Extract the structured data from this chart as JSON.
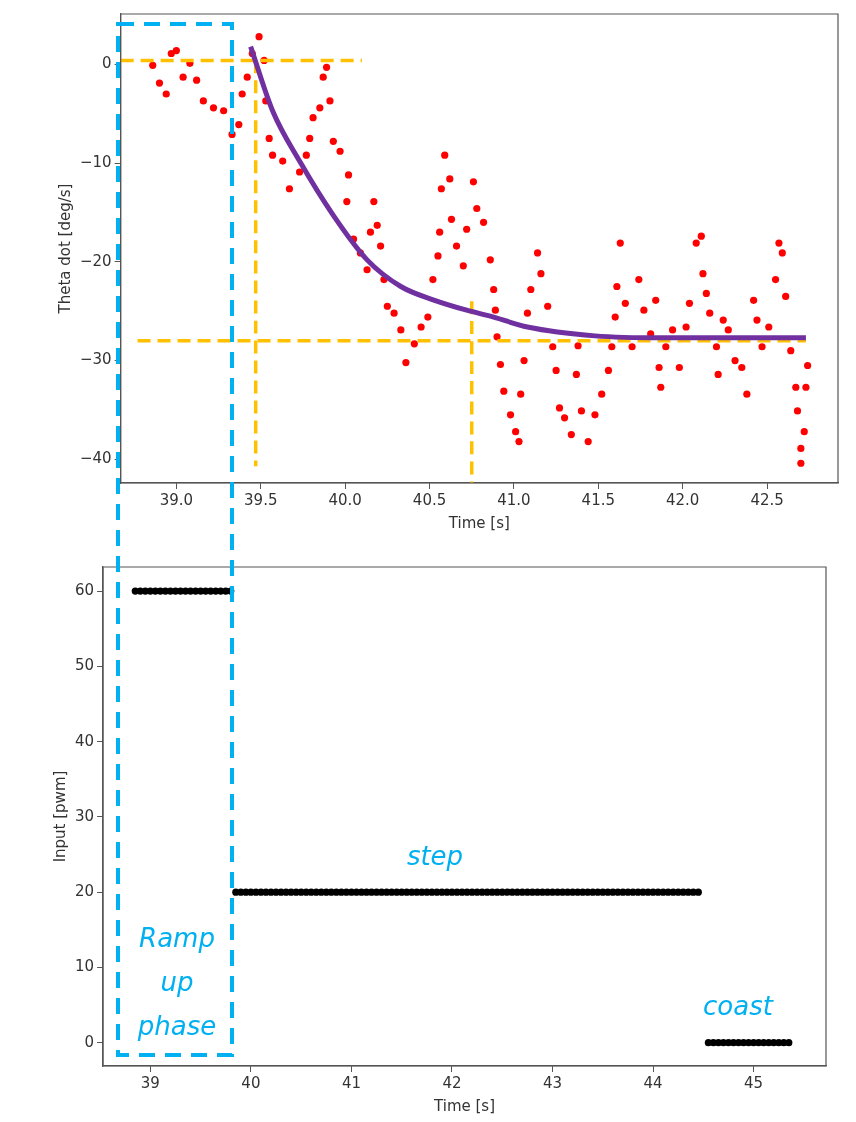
{
  "chart_data": [
    {
      "type": "scatter",
      "xlabel": "Time [s]",
      "ylabel": "Theta dot [deg/s]",
      "xlim": [
        38.67,
        42.92
      ],
      "ylim": [
        -42.4,
        5.1
      ],
      "xticks": [
        {
          "value": 39,
          "label": "39.0"
        },
        39.5,
        {
          "value": 40,
          "label": "40.0"
        },
        40.5,
        {
          "value": 41,
          "label": "41.0"
        },
        41.5,
        {
          "value": 42,
          "label": "42.0"
        },
        42.5
      ],
      "yticks": [
        {
          "value": -40,
          "label": "−40"
        },
        {
          "value": -30,
          "label": "−30"
        },
        {
          "value": -20,
          "label": "−20"
        },
        {
          "value": -10,
          "label": "−10"
        },
        0
      ],
      "grid": false,
      "legend": false,
      "series": [
        {
          "color": "#ff0000",
          "marker": "circle",
          "x": [
            38.86,
            38.9,
            38.94,
            38.97,
            39.0,
            39.04,
            39.08,
            39.12,
            39.16,
            39.22,
            39.28,
            39.33,
            39.37,
            39.39,
            39.42,
            39.45,
            39.49,
            39.52,
            39.53,
            39.55,
            39.57,
            39.63,
            39.67,
            39.73,
            39.77,
            39.79,
            39.81,
            39.85,
            39.87,
            39.89,
            39.91,
            39.93,
            39.97,
            40.01,
            40.02,
            40.05,
            40.09,
            40.13,
            40.15,
            40.17,
            40.19,
            40.21,
            40.23,
            40.25,
            40.29,
            40.33,
            40.36,
            40.41,
            40.45,
            40.49,
            40.52,
            40.55,
            40.56,
            40.57,
            40.59,
            40.62,
            40.63,
            40.66,
            40.7,
            40.72,
            40.76,
            40.78,
            40.82,
            40.86,
            40.88,
            40.89,
            40.9,
            40.92,
            40.94,
            40.98,
            41.01,
            41.03,
            41.04,
            41.06,
            41.08,
            41.1,
            41.14,
            41.16,
            41.2,
            41.23,
            41.25,
            41.27,
            41.3,
            41.34,
            41.37,
            41.38,
            41.4,
            41.44,
            41.48,
            41.52,
            41.56,
            41.58,
            41.6,
            41.61,
            41.63,
            41.66,
            41.7,
            41.74,
            41.77,
            41.81,
            41.84,
            41.86,
            41.87,
            41.9,
            41.94,
            41.98,
            42.02,
            42.04,
            42.08,
            42.11,
            42.12,
            42.14,
            42.16,
            42.2,
            42.21,
            42.24,
            42.27,
            42.31,
            42.35,
            42.38,
            42.42,
            42.44,
            42.47,
            42.51,
            42.55,
            42.57,
            42.59,
            42.61,
            42.64,
            42.67,
            42.68,
            42.7,
            42.7,
            42.72,
            42.73,
            42.74
          ],
          "values": [
            -0.1,
            -1.9,
            -3.0,
            1.1,
            1.4,
            -1.3,
            0.1,
            -1.6,
            -3.7,
            -4.4,
            -4.7,
            -7.1,
            -6.1,
            -3.0,
            -1.3,
            1.1,
            2.8,
            0.4,
            -3.7,
            -7.5,
            -9.2,
            -9.8,
            -12.6,
            -10.9,
            -9.2,
            -7.5,
            -5.4,
            -4.4,
            -1.3,
            -0.3,
            -3.7,
            -7.8,
            -8.8,
            -13.9,
            -11.2,
            -17.7,
            -19.1,
            -20.8,
            -17.0,
            -13.9,
            -16.3,
            -18.4,
            -21.8,
            -24.5,
            -25.2,
            -26.9,
            -30.2,
            -28.3,
            -26.6,
            -25.6,
            -21.8,
            -19.4,
            -17.0,
            -12.6,
            -9.2,
            -11.6,
            -15.7,
            -18.4,
            -20.4,
            -16.7,
            -11.9,
            -14.6,
            -16.0,
            -19.8,
            -22.8,
            -24.9,
            -27.6,
            -30.4,
            -33.1,
            -35.5,
            -37.2,
            -38.2,
            -33.4,
            -30.0,
            -25.2,
            -22.8,
            -19.1,
            -21.2,
            -24.5,
            -28.6,
            -31.0,
            -34.8,
            -35.8,
            -37.5,
            -31.4,
            -28.5,
            -35.1,
            -38.2,
            -35.5,
            -33.4,
            -31.0,
            -28.6,
            -25.6,
            -22.5,
            -18.1,
            -24.2,
            -28.6,
            -21.8,
            -24.9,
            -27.3,
            -23.9,
            -30.7,
            -32.7,
            -28.6,
            -26.9,
            -30.7,
            -26.6,
            -24.2,
            -18.1,
            -17.4,
            -21.2,
            -23.2,
            -25.2,
            -28.6,
            -31.4,
            -25.9,
            -26.9,
            -30.0,
            -30.7,
            -33.4,
            -23.9,
            -25.9,
            -28.6,
            -26.6,
            -21.8,
            -18.1,
            -19.1,
            -23.5,
            -29.0,
            -32.7,
            -35.1,
            -38.9,
            -40.4,
            -37.2,
            -32.7,
            -30.5
          ]
        },
        {
          "type": "line",
          "color": "#ffc000",
          "marker": "none",
          "line_style": "dashed",
          "x": [
            38.67,
            40.1
          ],
          "values": [
            0.4,
            0.4
          ]
        },
        {
          "type": "line",
          "color": "#ffc000",
          "marker": "none",
          "line_style": "dashed",
          "x": [
            38.77,
            42.73
          ],
          "values": [
            -28,
            -28
          ]
        },
        {
          "type": "line",
          "color": "#ffc000",
          "marker": "none",
          "line_style": "dashed",
          "x": [
            39.47,
            39.47
          ],
          "values": [
            0.4,
            -40.7
          ]
        },
        {
          "type": "line",
          "color": "#ffc000",
          "marker": "none",
          "line_style": "dashed",
          "x": [
            40.75,
            40.75
          ],
          "values": [
            -24,
            -42.4
          ]
        },
        {
          "type": "line",
          "color": "#7030a0",
          "marker": "none",
          "line_style": "solid",
          "x": [
            39.44,
            39.57,
            39.73,
            39.93,
            40.13,
            40.33,
            40.53,
            40.72,
            40.88,
            41.08,
            41.48,
            41.87,
            42.73
          ],
          "values": [
            1.8,
            -4.7,
            -9.8,
            -15.3,
            -19.8,
            -22.5,
            -23.9,
            -24.9,
            -25.6,
            -26.6,
            -27.5,
            -27.7,
            -27.7
          ]
        }
      ]
    },
    {
      "type": "scatter",
      "xlabel": "Time [s]",
      "ylabel": "Input [pwm]",
      "xlim": [
        38.53,
        45.72
      ],
      "ylim": [
        -3.1,
        63.2
      ],
      "xticks": [
        39,
        40,
        41,
        42,
        43,
        44,
        45
      ],
      "yticks": [
        0,
        10,
        20,
        30,
        40,
        50,
        60
      ],
      "grid": false,
      "legend": false,
      "annotations": [
        "step",
        "coast",
        "Ramp up phase"
      ],
      "series": [
        {
          "color": "#000000",
          "marker": "circle",
          "x": [
            38.85,
            38.9,
            38.95,
            39,
            39.05,
            39.1,
            39.15,
            39.2,
            39.25,
            39.3,
            39.35,
            39.4,
            39.45,
            39.5,
            39.55,
            39.6,
            39.65,
            39.7,
            39.75,
            39.8,
            39.85,
            39.9,
            39.95,
            40,
            40.05,
            40.1,
            40.15,
            40.2,
            40.25,
            40.3,
            40.35,
            40.4,
            40.45,
            40.5,
            40.55,
            40.6,
            40.65,
            40.7,
            40.75,
            40.8,
            40.85,
            40.9,
            40.95,
            41,
            41.05,
            41.1,
            41.15,
            41.2,
            41.25,
            41.3,
            41.35,
            41.4,
            41.45,
            41.5,
            41.55,
            41.6,
            41.65,
            41.7,
            41.75,
            41.8,
            41.85,
            41.9,
            41.95,
            42,
            42.05,
            42.1,
            42.15,
            42.2,
            42.25,
            42.3,
            42.35,
            42.4,
            42.45,
            42.5,
            42.55,
            42.6,
            42.65,
            42.7,
            42.75,
            42.8,
            42.85,
            42.9,
            42.95,
            43,
            43.05,
            43.1,
            43.15,
            43.2,
            43.25,
            43.3,
            43.35,
            43.4,
            43.45,
            43.5,
            43.55,
            43.6,
            43.65,
            43.7,
            43.75,
            43.8,
            43.85,
            43.9,
            43.95,
            44,
            44.05,
            44.1,
            44.15,
            44.2,
            44.25,
            44.3,
            44.35,
            44.4,
            44.45,
            44.55,
            44.6,
            44.65,
            44.7,
            44.75,
            44.8,
            44.85,
            44.9,
            44.95,
            45,
            45.05,
            45.1,
            45.15,
            45.2,
            45.25,
            45.3,
            45.35
          ],
          "values": [
            60,
            60,
            60,
            60,
            60,
            60,
            60,
            60,
            60,
            60,
            60,
            60,
            60,
            60,
            60,
            60,
            60,
            60,
            60,
            60,
            20,
            20,
            20,
            20,
            20,
            20,
            20,
            20,
            20,
            20,
            20,
            20,
            20,
            20,
            20,
            20,
            20,
            20,
            20,
            20,
            20,
            20,
            20,
            20,
            20,
            20,
            20,
            20,
            20,
            20,
            20,
            20,
            20,
            20,
            20,
            20,
            20,
            20,
            20,
            20,
            20,
            20,
            20,
            20,
            20,
            20,
            20,
            20,
            20,
            20,
            20,
            20,
            20,
            20,
            20,
            20,
            20,
            20,
            20,
            20,
            20,
            20,
            20,
            20,
            20,
            20,
            20,
            20,
            20,
            20,
            20,
            20,
            20,
            20,
            20,
            20,
            20,
            20,
            20,
            20,
            20,
            20,
            20,
            20,
            20,
            20,
            20,
            20,
            20,
            20,
            20,
            20,
            20,
            0,
            0,
            0,
            0,
            0,
            0,
            0,
            0,
            0,
            0,
            0,
            0,
            0,
            0,
            0,
            0,
            0
          ]
        }
      ]
    }
  ]
}
